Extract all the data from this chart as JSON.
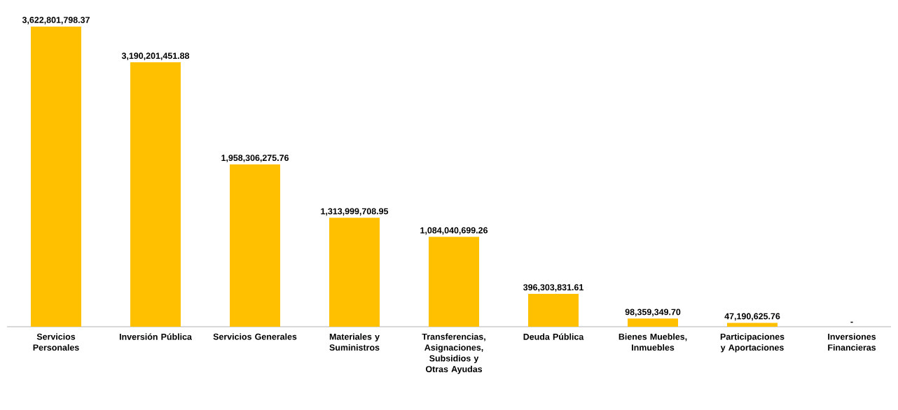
{
  "chart_data": {
    "type": "bar",
    "categories": [
      "Servicios Personales",
      "Inversión Pública",
      "Servicios Generales",
      "Materiales y Suministros",
      "Transferencias, Asignaciones, Subsidios y Otras Ayudas",
      "Deuda Pública",
      "Bienes Muebles, Inmuebles",
      "Participaciones y Aportaciones",
      "Inversiones Financieras"
    ],
    "values": [
      3622801798.37,
      3190201451.88,
      1958306275.76,
      1313999708.95,
      1084040699.26,
      396303831.61,
      98359349.7,
      47190625.76,
      0
    ],
    "value_labels": [
      "3,622,801,798.37",
      "3,190,201,451.88",
      "1,958,306,275.76",
      "1,313,999,708.95",
      "1,084,040,699.26",
      "396,303,831.61",
      "98,359,349.70",
      "47,190,625.76",
      "-"
    ],
    "color": "#ffc000"
  }
}
